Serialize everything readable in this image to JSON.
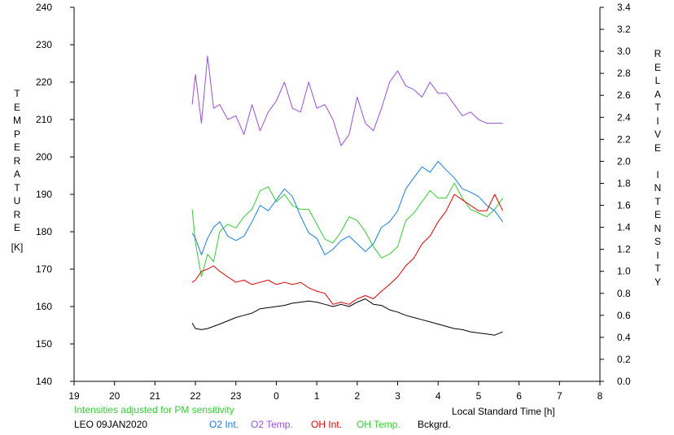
{
  "left_axis_label": "TEMPERATURE",
  "left_axis_unit": "[K]",
  "right_axis_label": "RELATIVE INTENSITY",
  "x_axis_label": "Local Standard Time [h]",
  "note": "Intensities adjusted for PM sensitivity",
  "station_date": "LEO 09JAN2020",
  "colors": {
    "o2_int": "#1a7fe0",
    "o2_temp": "#9a4fd6",
    "oh_int": "#e00000",
    "oh_temp": "#33cc33",
    "bckgrd": "#000000",
    "note": "#33cc33"
  },
  "legend": [
    {
      "key": "o2_int",
      "label": "O2 Int."
    },
    {
      "key": "o2_temp",
      "label": "O2 Temp."
    },
    {
      "key": "oh_int",
      "label": "OH Int."
    },
    {
      "key": "oh_temp",
      "label": "OH Temp."
    },
    {
      "key": "bckgrd",
      "label": "Bckgrd."
    }
  ],
  "chart_data": {
    "type": "line",
    "x_ticks": [
      "19",
      "20",
      "21",
      "22",
      "23",
      "0",
      "1",
      "2",
      "3",
      "4",
      "5",
      "6",
      "7",
      "8"
    ],
    "xlim_hours_since_19": [
      0,
      13
    ],
    "y_left_ticks": [
      "140",
      "150",
      "160",
      "170",
      "180",
      "190",
      "200",
      "210",
      "220",
      "230",
      "240"
    ],
    "ylim_left": [
      140,
      240
    ],
    "y_right_ticks": [
      "0.0",
      "0.2",
      "0.4",
      "0.6",
      "0.8",
      "1.0",
      "1.2",
      "1.4",
      "1.6",
      "1.8",
      "2.0",
      "2.2",
      "2.4",
      "2.6",
      "2.8",
      "3.0",
      "3.2",
      "3.4"
    ],
    "ylim_right": [
      0,
      3.4
    ],
    "series": [
      {
        "key": "o2_temp",
        "name": "O2 Temp.",
        "axis": "left",
        "x": [
          2.92,
          3.0,
          3.15,
          3.3,
          3.45,
          3.6,
          3.8,
          4.0,
          4.2,
          4.4,
          4.6,
          4.8,
          5.0,
          5.2,
          5.4,
          5.6,
          5.8,
          6.0,
          6.2,
          6.4,
          6.6,
          6.8,
          7.0,
          7.2,
          7.4,
          7.6,
          7.8,
          8.0,
          8.2,
          8.4,
          8.6,
          8.8,
          9.0,
          9.2,
          9.4,
          9.6,
          9.8,
          10.0,
          10.2,
          10.4,
          10.6
        ],
        "y": [
          214,
          222,
          209,
          227,
          213,
          214,
          210,
          211,
          206,
          214,
          207,
          212,
          215,
          220,
          213,
          212,
          220,
          213,
          214,
          210,
          203,
          206,
          216,
          209,
          207,
          213,
          220,
          223,
          219,
          218,
          216,
          220,
          217,
          217,
          214,
          211,
          212,
          210,
          209,
          209,
          209
        ]
      },
      {
        "key": "oh_temp",
        "name": "OH Temp.",
        "axis": "left",
        "x": [
          2.92,
          3.0,
          3.15,
          3.3,
          3.45,
          3.6,
          3.8,
          4.0,
          4.2,
          4.4,
          4.6,
          4.8,
          5.0,
          5.2,
          5.4,
          5.6,
          5.8,
          6.0,
          6.2,
          6.4,
          6.6,
          6.8,
          7.0,
          7.2,
          7.4,
          7.6,
          7.8,
          8.0,
          8.2,
          8.4,
          8.6,
          8.8,
          9.0,
          9.2,
          9.4,
          9.6,
          9.8,
          10.0,
          10.2,
          10.4,
          10.6
        ],
        "y": [
          186,
          177,
          168,
          174,
          172,
          180,
          182,
          181,
          184,
          186,
          191,
          192,
          188,
          190,
          187,
          186,
          186,
          182,
          178,
          177,
          180,
          184,
          183,
          180,
          176,
          173,
          174,
          176,
          183,
          185,
          188,
          191,
          189,
          189,
          193,
          189,
          186,
          185,
          184,
          186,
          189
        ]
      },
      {
        "key": "o2_int",
        "name": "O2 Int.",
        "axis": "right",
        "x": [
          2.92,
          3.0,
          3.15,
          3.3,
          3.45,
          3.6,
          3.8,
          4.0,
          4.2,
          4.4,
          4.6,
          4.8,
          5.0,
          5.2,
          5.4,
          5.6,
          5.8,
          6.0,
          6.2,
          6.4,
          6.6,
          6.8,
          7.0,
          7.2,
          7.4,
          7.6,
          7.8,
          8.0,
          8.2,
          8.4,
          8.6,
          8.8,
          9.0,
          9.2,
          9.4,
          9.6,
          9.8,
          10.0,
          10.2,
          10.4,
          10.6
        ],
        "y": [
          1.35,
          1.3,
          1.15,
          1.3,
          1.4,
          1.45,
          1.32,
          1.28,
          1.32,
          1.45,
          1.6,
          1.55,
          1.65,
          1.75,
          1.68,
          1.5,
          1.35,
          1.3,
          1.15,
          1.2,
          1.28,
          1.32,
          1.25,
          1.18,
          1.25,
          1.4,
          1.45,
          1.55,
          1.75,
          1.85,
          1.95,
          1.9,
          2.0,
          1.92,
          1.85,
          1.75,
          1.72,
          1.68,
          1.6,
          1.55,
          1.45
        ]
      },
      {
        "key": "oh_int",
        "name": "OH Int.",
        "axis": "right",
        "x": [
          2.92,
          3.0,
          3.15,
          3.3,
          3.45,
          3.6,
          3.8,
          4.0,
          4.2,
          4.4,
          4.6,
          4.8,
          5.0,
          5.2,
          5.4,
          5.6,
          5.8,
          6.0,
          6.2,
          6.4,
          6.6,
          6.8,
          7.0,
          7.2,
          7.4,
          7.6,
          7.8,
          8.0,
          8.2,
          8.4,
          8.6,
          8.8,
          9.0,
          9.2,
          9.4,
          9.6,
          9.8,
          10.0,
          10.2,
          10.4,
          10.6
        ],
        "y": [
          0.9,
          0.92,
          1.0,
          1.02,
          1.05,
          1.0,
          0.95,
          0.9,
          0.92,
          0.88,
          0.9,
          0.92,
          0.88,
          0.9,
          0.88,
          0.9,
          0.85,
          0.82,
          0.8,
          0.7,
          0.72,
          0.7,
          0.75,
          0.78,
          0.75,
          0.82,
          0.88,
          0.95,
          1.05,
          1.12,
          1.25,
          1.32,
          1.45,
          1.55,
          1.7,
          1.65,
          1.6,
          1.55,
          1.55,
          1.7,
          1.55
        ]
      },
      {
        "key": "bckgrd",
        "name": "Bckgrd.",
        "axis": "right",
        "x": [
          2.92,
          3.0,
          3.15,
          3.3,
          3.45,
          3.6,
          3.8,
          4.0,
          4.2,
          4.4,
          4.6,
          4.8,
          5.0,
          5.2,
          5.4,
          5.6,
          5.8,
          6.0,
          6.2,
          6.4,
          6.6,
          6.8,
          7.0,
          7.2,
          7.4,
          7.6,
          7.8,
          8.0,
          8.2,
          8.4,
          8.6,
          8.8,
          9.0,
          9.2,
          9.4,
          9.6,
          9.8,
          10.0,
          10.2,
          10.4,
          10.6
        ],
        "y": [
          0.53,
          0.48,
          0.47,
          0.48,
          0.5,
          0.52,
          0.55,
          0.58,
          0.6,
          0.62,
          0.66,
          0.67,
          0.68,
          0.69,
          0.71,
          0.72,
          0.73,
          0.72,
          0.7,
          0.68,
          0.7,
          0.68,
          0.72,
          0.75,
          0.7,
          0.69,
          0.65,
          0.63,
          0.6,
          0.58,
          0.56,
          0.54,
          0.52,
          0.5,
          0.48,
          0.47,
          0.45,
          0.44,
          0.43,
          0.42,
          0.45
        ]
      }
    ]
  }
}
